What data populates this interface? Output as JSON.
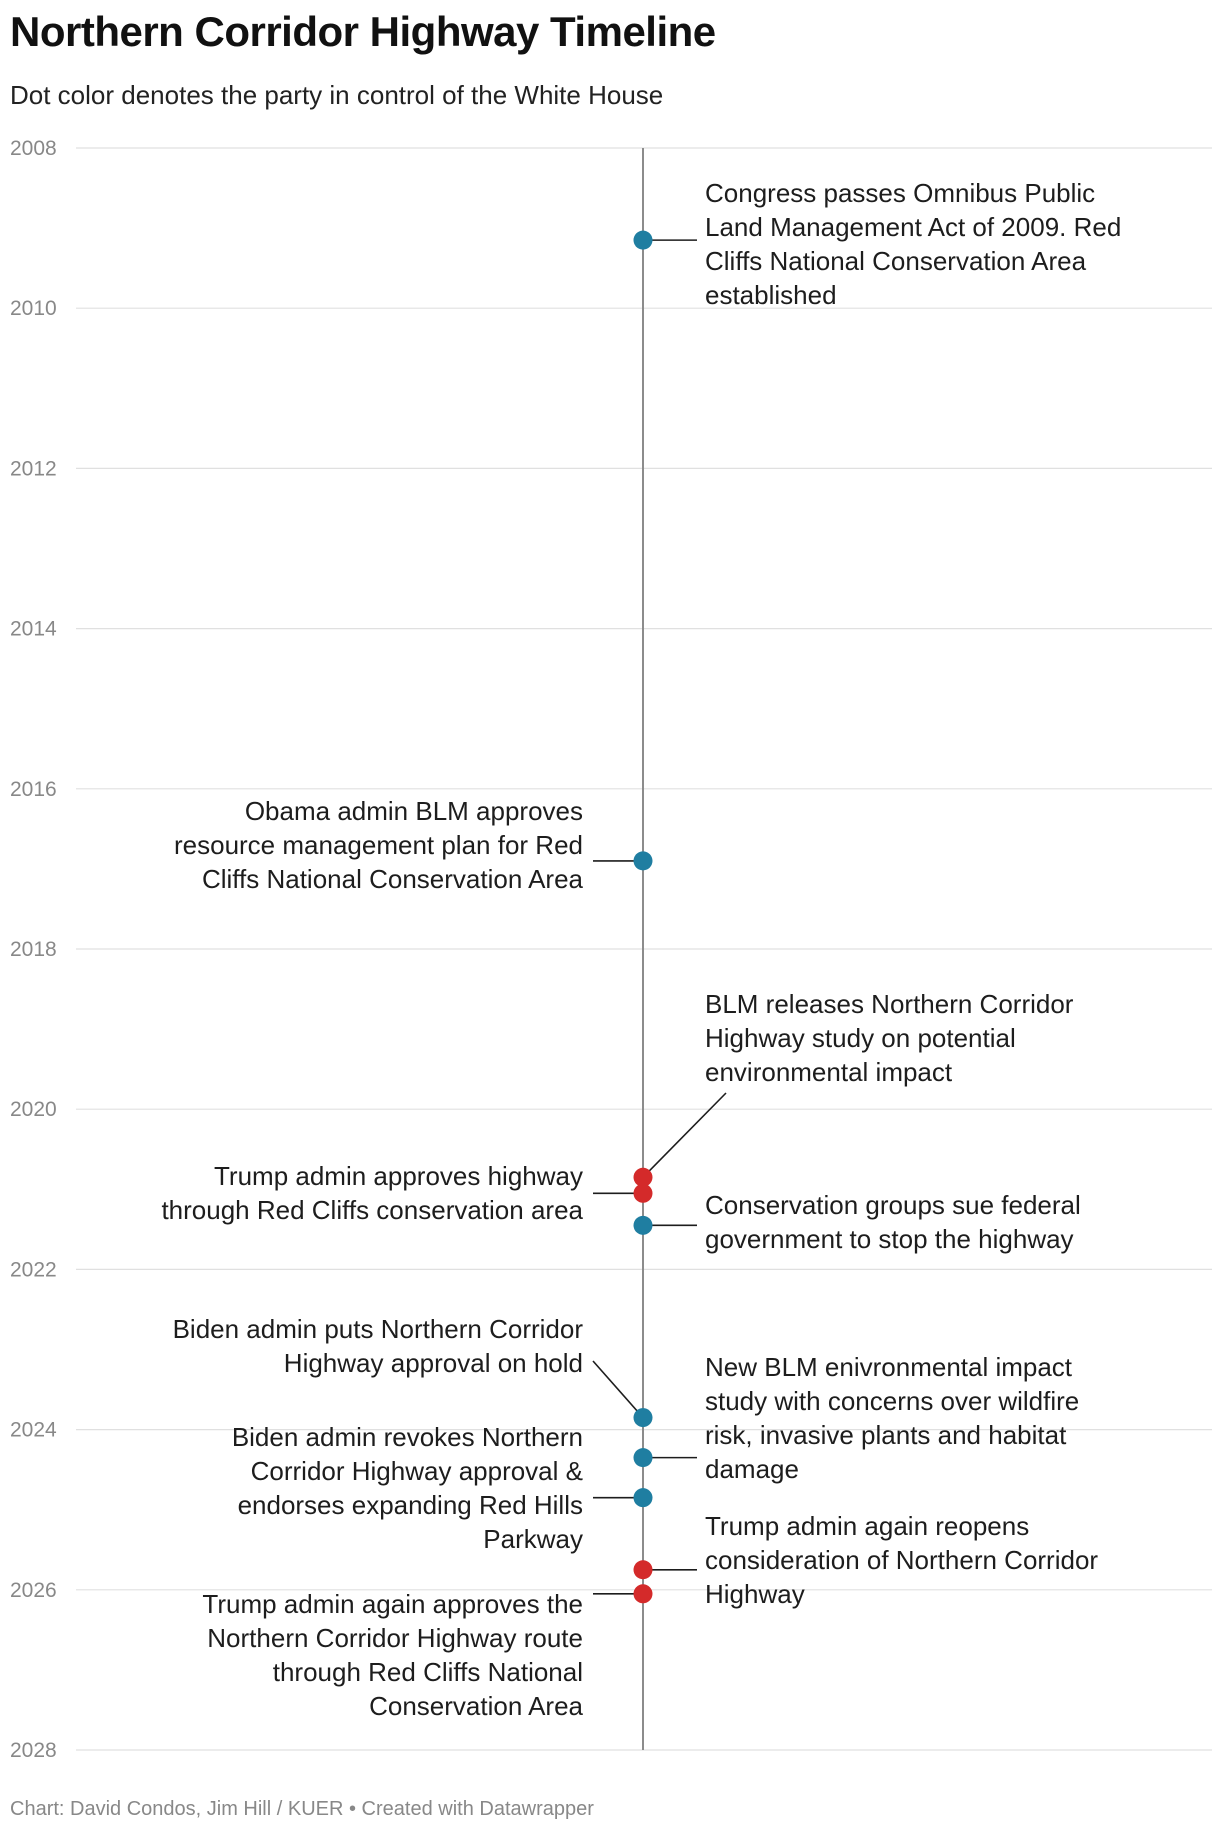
{
  "title": "Northern Corridor Highway Timeline",
  "subtitle": "Dot color denotes the party in control of the White House",
  "footer": "Chart: David Condos, Jim Hill / KUER • Created with Datawrapper",
  "chart_data": {
    "type": "scatter",
    "title": "Northern Corridor Highway Timeline",
    "subtitle": "Dot color denotes the party in control of the White House",
    "y_axis": {
      "range": [
        2008,
        2028
      ],
      "reversed": true,
      "ticks": [
        "2008",
        "2010",
        "2012",
        "2014",
        "2016",
        "2018",
        "2020",
        "2022",
        "2024",
        "2026",
        "2028"
      ],
      "grid": true
    },
    "colors": {
      "Democrat": "#1f7ea1",
      "Republican": "#d42a2a"
    },
    "events": [
      {
        "date": 2009.15,
        "party": "Democrat",
        "side": "right",
        "text": [
          "Congress passes Omnibus Public",
          "Land Management Act of 2009. Red",
          "Cliffs National Conservation Area",
          "established"
        ]
      },
      {
        "date": 2016.9,
        "party": "Democrat",
        "side": "left",
        "text": [
          "Obama admin BLM approves",
          "resource management plan for Red",
          "Cliffs National Conservation Area"
        ]
      },
      {
        "date": 2020.85,
        "party": "Republican",
        "side": "right",
        "text": [
          "BLM releases Northern Corridor",
          "Highway study on potential",
          "environmental impact"
        ]
      },
      {
        "date": 2021.05,
        "party": "Republican",
        "side": "left",
        "text": [
          "Trump admin approves highway",
          "through Red Cliffs conservation area"
        ]
      },
      {
        "date": 2021.45,
        "party": "Democrat",
        "side": "right",
        "text": [
          "Conservation groups sue federal",
          "government to stop the highway"
        ]
      },
      {
        "date": 2023.85,
        "party": "Democrat",
        "side": "left",
        "text": [
          "Biden admin puts Northern Corridor",
          "Highway approval on hold"
        ]
      },
      {
        "date": 2024.35,
        "party": "Democrat",
        "side": "right",
        "text": [
          "New BLM enivronmental impact",
          "study with concerns over wildfire",
          "risk, invasive plants and habitat",
          "damage"
        ]
      },
      {
        "date": 2024.85,
        "party": "Democrat",
        "side": "left",
        "text": [
          "Biden admin revokes Northern",
          "Corridor Highway approval &",
          "endorses expanding Red Hills",
          "Parkway"
        ]
      },
      {
        "date": 2025.75,
        "party": "Republican",
        "side": "right",
        "text": [
          "Trump admin again reopens",
          "consideration of Northern Corridor",
          "Highway"
        ]
      },
      {
        "date": 2026.05,
        "party": "Republican",
        "side": "left",
        "text": [
          "Trump admin again approves the",
          "Northern Corridor Highway route",
          "through Red Cliffs National",
          "Conservation Area"
        ]
      }
    ]
  }
}
